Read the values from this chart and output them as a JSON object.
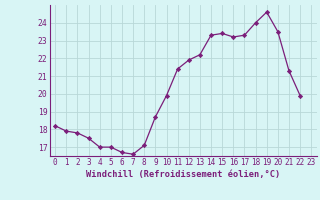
{
  "x": [
    0,
    1,
    2,
    3,
    4,
    5,
    6,
    7,
    8,
    9,
    10,
    11,
    12,
    13,
    14,
    15,
    16,
    17,
    18,
    19,
    20,
    21,
    22,
    23
  ],
  "y": [
    18.2,
    17.9,
    17.8,
    17.5,
    17.0,
    17.0,
    16.7,
    16.6,
    17.1,
    18.7,
    19.9,
    21.4,
    21.9,
    22.2,
    23.3,
    23.4,
    23.2,
    23.3,
    24.0,
    24.6,
    23.5,
    21.3,
    19.9,
    null
  ],
  "xlabel": "Windchill (Refroidissement éolien,°C)",
  "xlim": [
    -0.5,
    23.5
  ],
  "ylim": [
    16.5,
    25.0
  ],
  "yticks": [
    17,
    18,
    19,
    20,
    21,
    22,
    23,
    24
  ],
  "xticks": [
    0,
    1,
    2,
    3,
    4,
    5,
    6,
    7,
    8,
    9,
    10,
    11,
    12,
    13,
    14,
    15,
    16,
    17,
    18,
    19,
    20,
    21,
    22,
    23
  ],
  "line_color": "#7B1E7A",
  "marker": "D",
  "marker_size": 2.2,
  "linewidth": 0.9,
  "bg_color": "#d8f5f5",
  "grid_color": "#b8d8d8",
  "spine_color": "#7B1E7A",
  "tick_fontsize": 5.5,
  "xlabel_fontsize": 6.2
}
